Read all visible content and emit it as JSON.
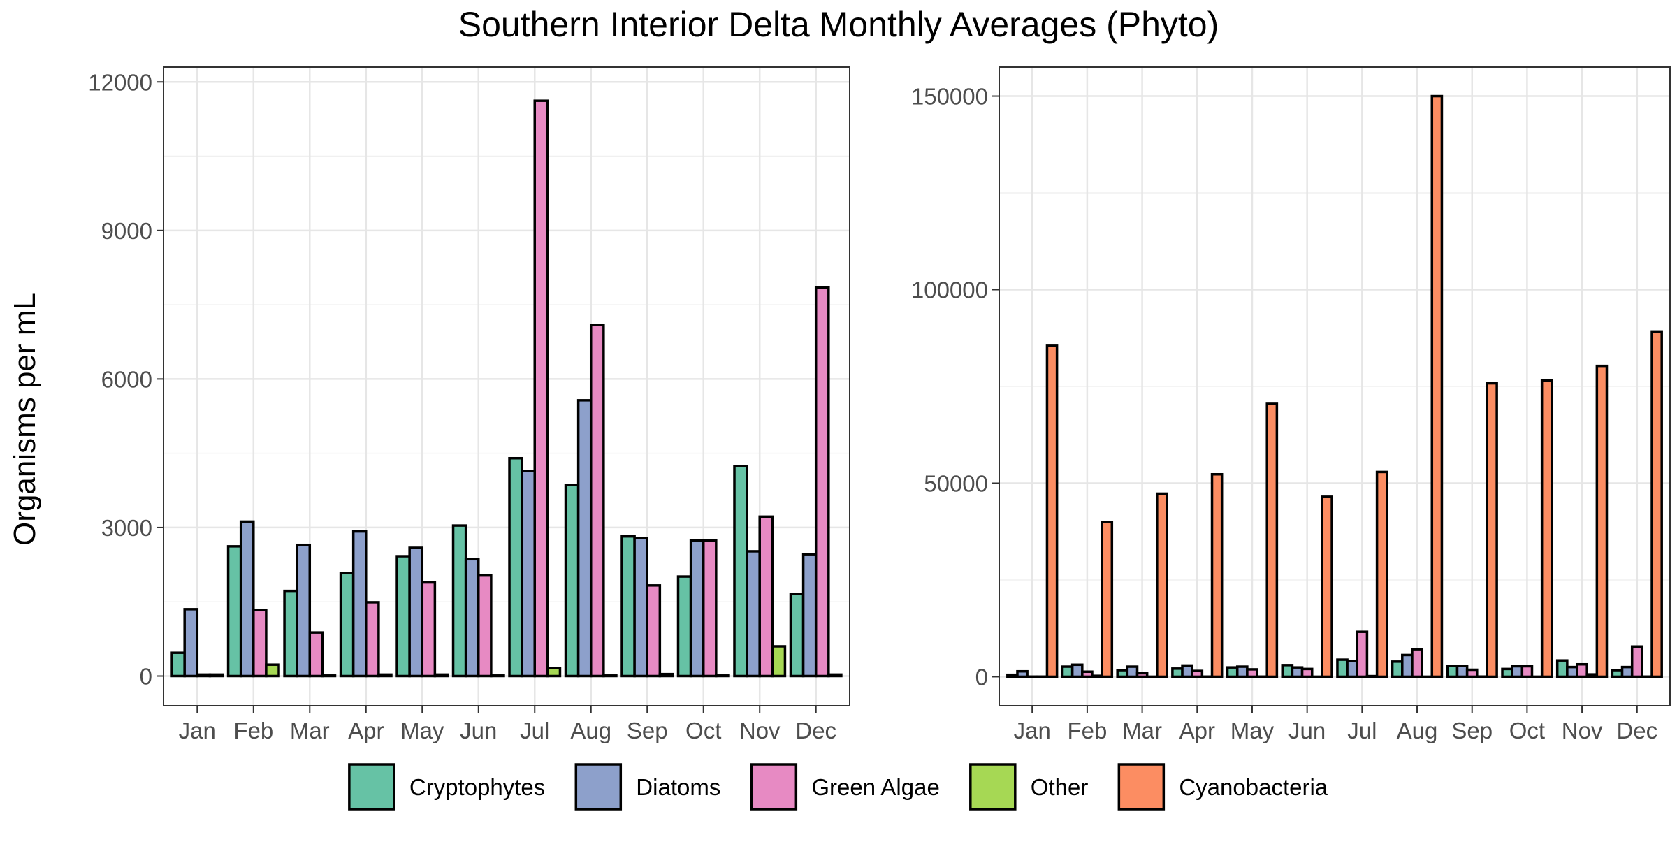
{
  "title": "Southern Interior Delta Monthly Averages (Phyto)",
  "ylabel": "Organisms per mL",
  "legend": {
    "placement": "bottom",
    "items": [
      {
        "name": "Cryptophytes",
        "color": "#66c2a5"
      },
      {
        "name": "Diatoms",
        "color": "#8da0cb"
      },
      {
        "name": "Green Algae",
        "color": "#e78ac3"
      },
      {
        "name": "Other",
        "color": "#a6d854"
      },
      {
        "name": "Cyanobacteria",
        "color": "#fc8d62"
      }
    ]
  },
  "chart_data": [
    {
      "type": "bar",
      "panel": "left",
      "grid": true,
      "categories": [
        "Jan",
        "Feb",
        "Mar",
        "Apr",
        "May",
        "Jun",
        "Jul",
        "Aug",
        "Sep",
        "Oct",
        "Nov",
        "Dec"
      ],
      "ylim": [
        -600,
        12300
      ],
      "yticks": [
        0,
        3000,
        6000,
        9000,
        12000
      ],
      "series": [
        {
          "name": "Cryptophytes",
          "color": "#66c2a5",
          "values": [
            470,
            2620,
            1720,
            2080,
            2420,
            3040,
            4400,
            3860,
            2820,
            2010,
            4240,
            1660
          ]
        },
        {
          "name": "Diatoms",
          "color": "#8da0cb",
          "values": [
            1350,
            3120,
            2650,
            2920,
            2590,
            2360,
            4140,
            5570,
            2790,
            2740,
            2520,
            2460
          ]
        },
        {
          "name": "Green Algae",
          "color": "#e78ac3",
          "values": [
            30,
            1330,
            880,
            1490,
            1890,
            2030,
            11620,
            7090,
            1830,
            2740,
            3220,
            7850
          ]
        },
        {
          "name": "Other",
          "color": "#a6d854",
          "values": [
            30,
            230,
            10,
            30,
            30,
            10,
            160,
            10,
            40,
            10,
            600,
            30
          ]
        }
      ]
    },
    {
      "type": "bar",
      "panel": "right",
      "grid": true,
      "categories": [
        "Jan",
        "Feb",
        "Mar",
        "Apr",
        "May",
        "Jun",
        "Jul",
        "Aug",
        "Sep",
        "Oct",
        "Nov",
        "Dec"
      ],
      "ylim": [
        -7500,
        157500
      ],
      "yticks": [
        0,
        50000,
        100000,
        150000
      ],
      "series": [
        {
          "name": "Cryptophytes",
          "color": "#66c2a5",
          "values": [
            500,
            2600,
            1700,
            2100,
            2400,
            3000,
            4400,
            3900,
            2800,
            2000,
            4200,
            1700
          ]
        },
        {
          "name": "Diatoms",
          "color": "#8da0cb",
          "values": [
            1400,
            3100,
            2600,
            2900,
            2600,
            2400,
            4100,
            5600,
            2800,
            2700,
            2500,
            2500
          ]
        },
        {
          "name": "Green Algae",
          "color": "#e78ac3",
          "values": [
            30,
            1300,
            900,
            1500,
            1900,
            2000,
            11600,
            7100,
            1800,
            2700,
            3200,
            7800
          ]
        },
        {
          "name": "Other",
          "color": "#a6d854",
          "values": [
            30,
            230,
            10,
            30,
            30,
            10,
            160,
            10,
            40,
            10,
            600,
            30
          ]
        },
        {
          "name": "Cyanobacteria",
          "color": "#fc8d62",
          "values": [
            85500,
            40000,
            47300,
            52300,
            70500,
            46500,
            52900,
            150000,
            75800,
            76500,
            80300,
            89200
          ]
        }
      ]
    }
  ]
}
